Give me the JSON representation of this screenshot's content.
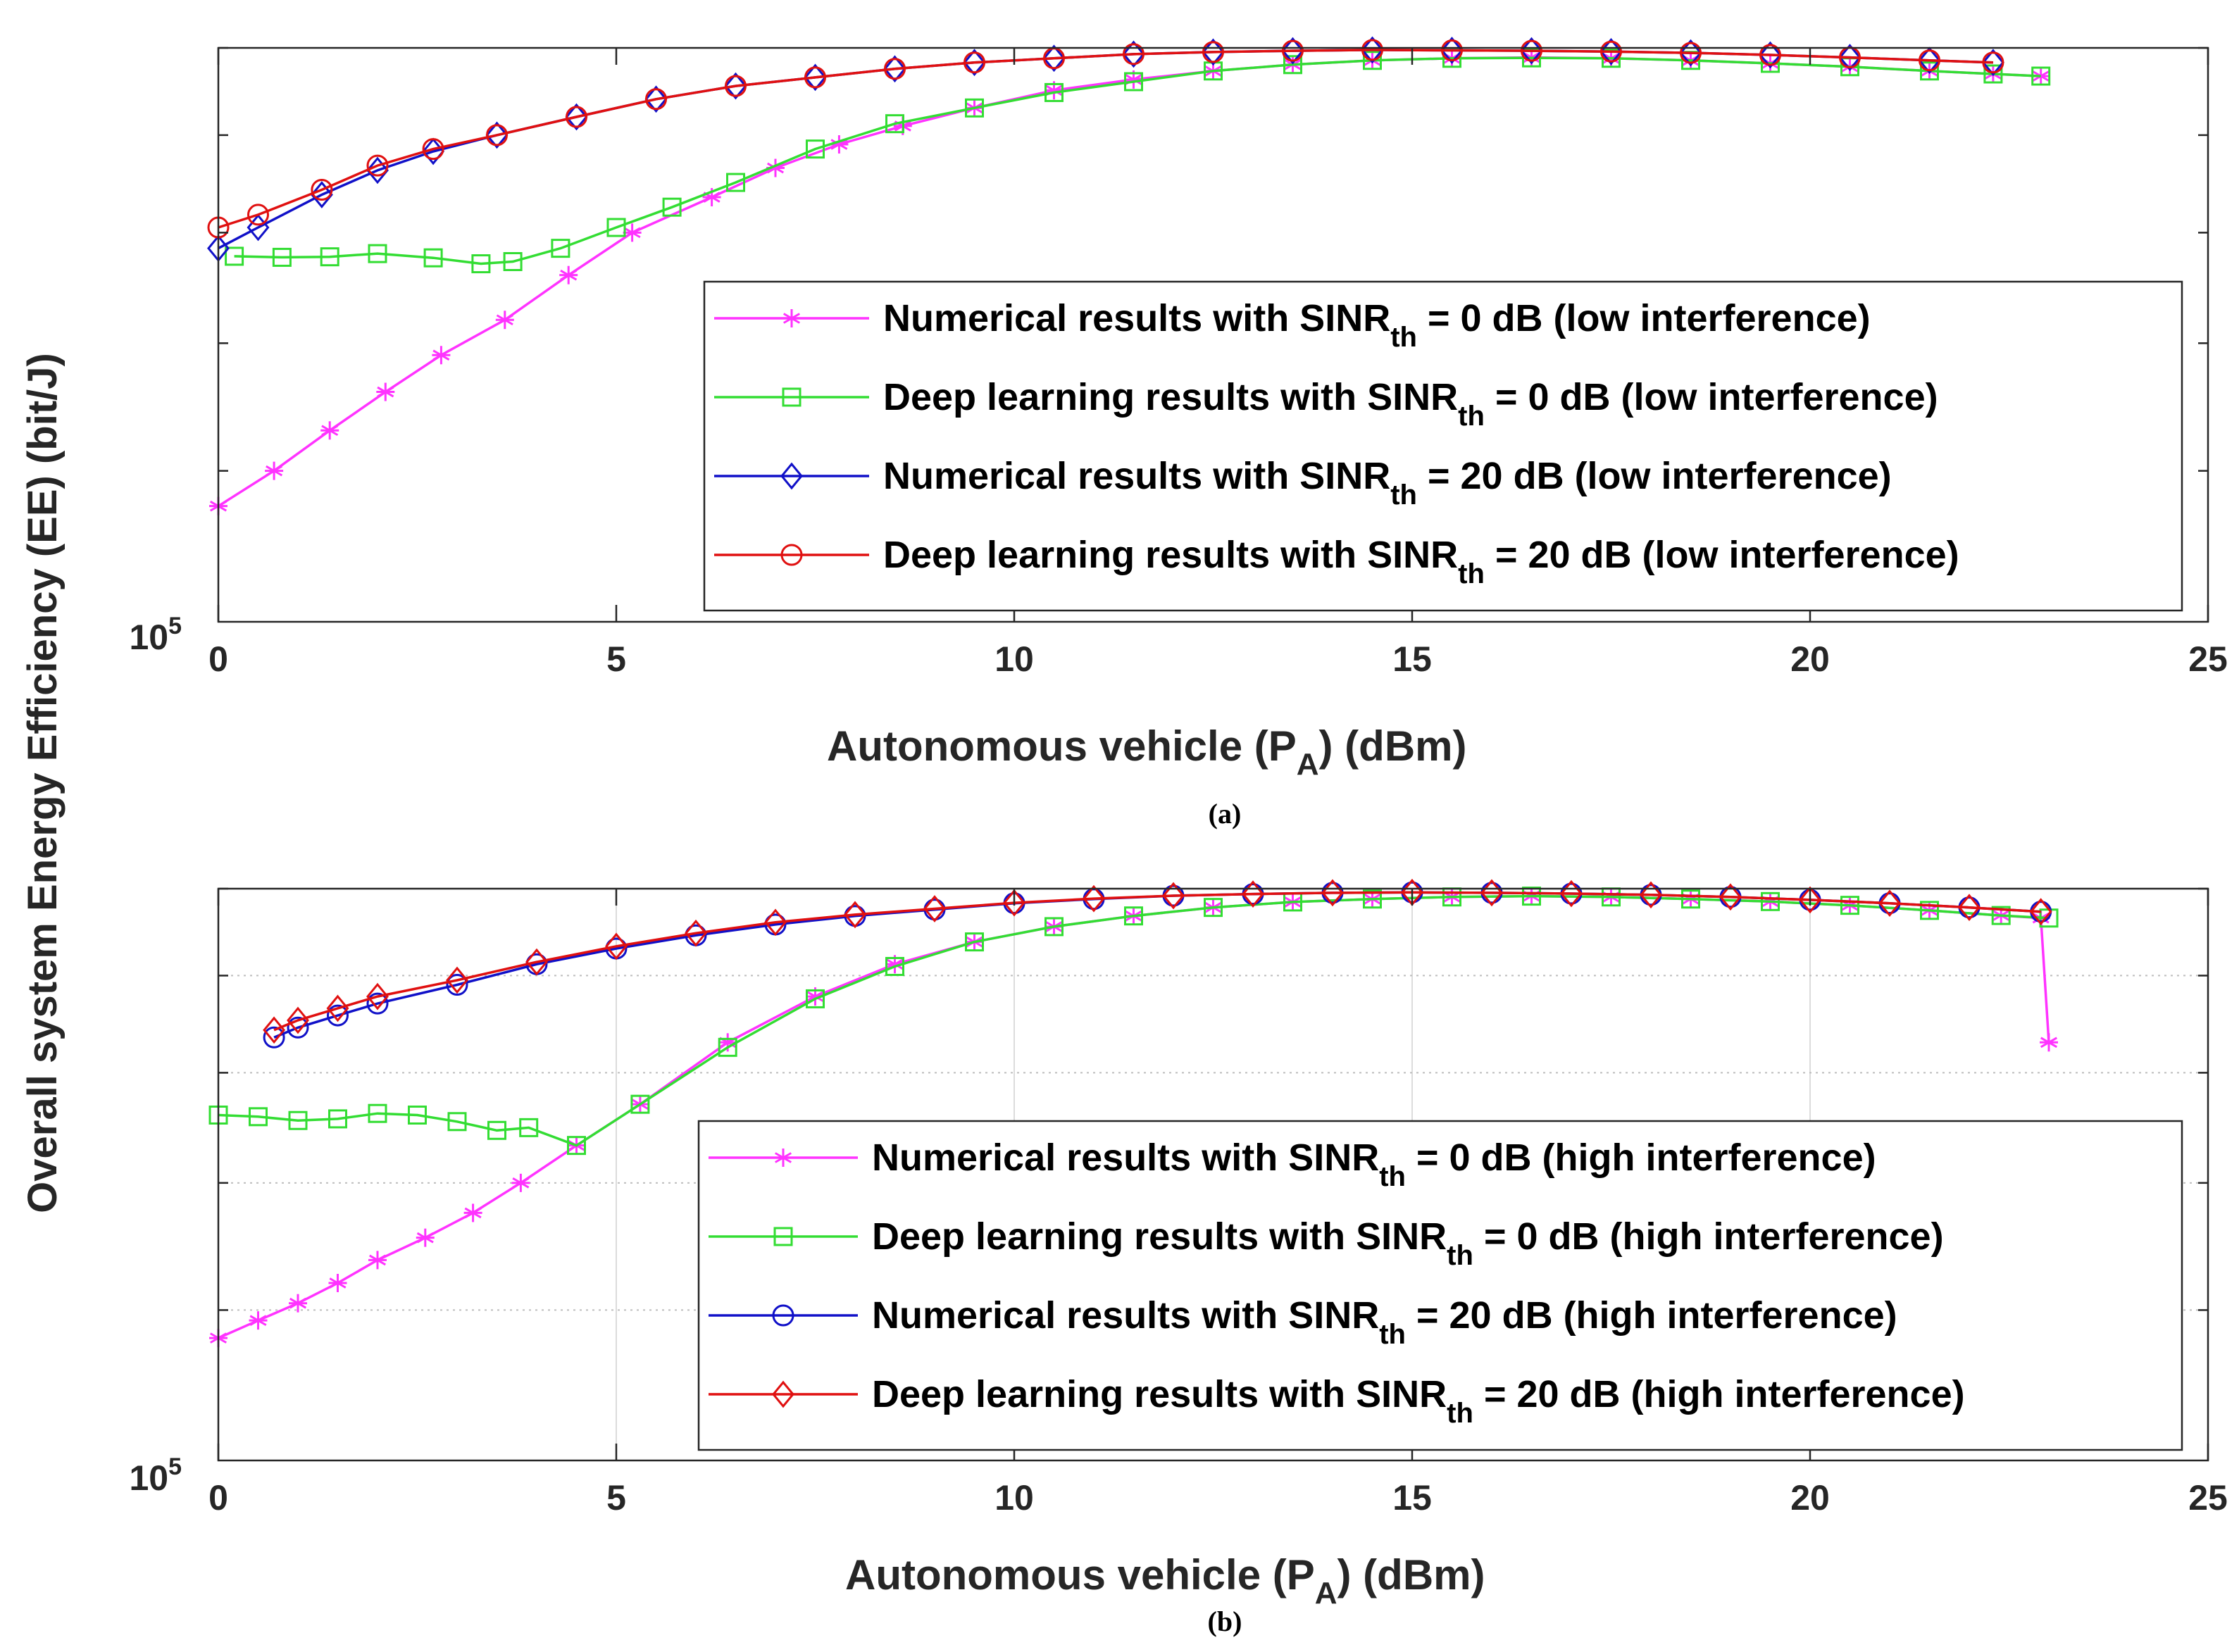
{
  "figure": {
    "ylabel": "Overall system Energy Efficiency (EE) (bit/J)"
  },
  "colors": {
    "magenta": "#ff33ff",
    "green": "#33dd33",
    "blue": "#1010c8",
    "red": "#e01010"
  },
  "chart_data": [
    {
      "type": "line",
      "caption": "(a)",
      "xlabel_pre": "Autonomous vehicle (P",
      "xlabel_sub": "A",
      "xlabel_post": ") (dBm)",
      "xlim": [
        0,
        25
      ],
      "xticks": [
        0,
        5,
        10,
        15,
        20,
        25
      ],
      "ylim": [
        100000,
        200000
      ],
      "yscale": "log",
      "ytick_base": "10",
      "ytick_exp": "5",
      "grid": false,
      "legend_position": "lower-right",
      "series": [
        {
          "legend_pre": "Numerical results with SINR",
          "legend_sub": "th",
          "legend_post": " = 0 dB (low interference)",
          "color": "#ff33ff",
          "marker": "asterisk",
          "x": [
            0,
            0.7,
            1.4,
            2.1,
            2.8,
            3.6,
            4.4,
            5.2,
            6.2,
            7.0,
            7.8,
            8.6,
            9.5,
            10.5,
            11.5,
            12.5,
            13.5,
            14.5,
            15.5,
            16.5,
            17.5,
            18.5,
            19.5,
            20.5,
            21.5,
            22.3,
            22.9
          ],
          "y": [
            115000,
            120000,
            126000,
            132000,
            138000,
            144000,
            152000,
            160000,
            167000,
            173000,
            178000,
            182000,
            186000,
            190000,
            192500,
            194500,
            196000,
            197000,
            197500,
            197700,
            197500,
            197000,
            196300,
            195500,
            194500,
            193800,
            193300
          ]
        },
        {
          "legend_pre": "Deep learning results with SINR",
          "legend_sub": "th",
          "legend_post": " = 0 dB (low interference)",
          "color": "#33dd33",
          "marker": "square",
          "x": [
            0.2,
            0.8,
            1.4,
            2.0,
            2.7,
            3.3,
            3.7,
            4.3,
            5.0,
            5.7,
            6.5,
            7.5,
            8.5,
            9.5,
            10.5,
            11.5,
            12.5,
            13.5,
            14.5,
            15.5,
            16.5,
            17.5,
            18.5,
            19.5,
            20.5,
            21.5,
            22.3,
            22.9
          ],
          "y": [
            155500,
            155300,
            155400,
            156000,
            155200,
            154100,
            154500,
            157000,
            161000,
            165000,
            170000,
            177000,
            182500,
            186000,
            189500,
            192000,
            194500,
            196000,
            197000,
            197500,
            197600,
            197500,
            197000,
            196300,
            195500,
            194500,
            193800,
            193300
          ]
        },
        {
          "legend_pre": "Numerical results with SINR",
          "legend_sub": "th",
          "legend_post": " = 20 dB (low interference)",
          "color": "#1010c8",
          "marker": "diamond",
          "x": [
            0,
            0.5,
            1.3,
            2.0,
            2.7,
            3.5,
            4.5,
            5.5,
            6.5,
            7.5,
            8.5,
            9.5,
            10.5,
            11.5,
            12.5,
            13.5,
            14.5,
            15.5,
            16.5,
            17.5,
            18.5,
            19.5,
            20.5,
            21.5,
            22.3
          ],
          "y": [
            157000,
            161000,
            167500,
            172500,
            176500,
            180000,
            184000,
            188000,
            191000,
            193000,
            195000,
            196500,
            197500,
            198500,
            199000,
            199300,
            199500,
            199400,
            199300,
            199100,
            198800,
            198300,
            197700,
            197000,
            196500
          ]
        },
        {
          "legend_pre": "Deep learning results with SINR",
          "legend_sub": "th",
          "legend_post": " = 20 dB (low interference)",
          "color": "#e01010",
          "marker": "circle",
          "x": [
            0,
            0.5,
            1.3,
            2.0,
            2.7,
            3.5,
            4.5,
            5.5,
            6.5,
            7.5,
            8.5,
            9.5,
            10.5,
            11.5,
            12.5,
            13.5,
            14.5,
            15.5,
            16.5,
            17.5,
            18.5,
            19.5,
            20.5,
            21.5,
            22.3
          ],
          "y": [
            161000,
            163500,
            168500,
            173500,
            177000,
            180000,
            184000,
            188000,
            191000,
            193000,
            195000,
            196500,
            197500,
            198500,
            199000,
            199300,
            199500,
            199400,
            199300,
            199100,
            198800,
            198300,
            197700,
            197000,
            196500
          ]
        }
      ]
    },
    {
      "type": "line",
      "caption": "(b)",
      "xlabel_pre": "Autonomous vehicle (P",
      "xlabel_sub": "A",
      "xlabel_post": ") (dBm)",
      "xlim": [
        0,
        25
      ],
      "xticks": [
        0,
        5,
        10,
        15,
        20,
        25
      ],
      "ylim": [
        100000,
        200000
      ],
      "yscale": "log",
      "ytick_base": "10",
      "ytick_exp": "5",
      "grid": true,
      "legend_position": "lower-right",
      "series": [
        {
          "legend_pre": "Numerical results with SINR",
          "legend_sub": "th",
          "legend_post": " = 0 dB (high interference)",
          "color": "#ff33ff",
          "marker": "asterisk",
          "x": [
            0,
            0.5,
            1.0,
            1.5,
            2.0,
            2.6,
            3.2,
            3.8,
            4.5,
            5.3,
            6.4,
            7.5,
            8.5,
            9.5,
            10.5,
            11.5,
            12.5,
            13.5,
            14.5,
            15.5,
            16.5,
            17.5,
            18.5,
            19.5,
            20.5,
            21.5,
            22.4,
            22.9,
            23.0
          ],
          "y": [
            116000,
            118500,
            121000,
            124000,
            127500,
            131000,
            135000,
            140000,
            146500,
            154000,
            166000,
            175500,
            182500,
            187500,
            191000,
            193500,
            195500,
            196800,
            197500,
            198000,
            198200,
            198000,
            197500,
            196900,
            196000,
            194800,
            193600,
            193000,
            166000
          ]
        },
        {
          "legend_pre": "Deep learning results with SINR",
          "legend_sub": "th",
          "legend_post": " = 0 dB (high interference)",
          "color": "#33dd33",
          "marker": "square",
          "x": [
            0,
            0.5,
            1.0,
            1.5,
            2.0,
            2.5,
            3.0,
            3.5,
            3.9,
            4.5,
            5.3,
            6.4,
            7.5,
            8.5,
            9.5,
            10.5,
            11.5,
            12.5,
            13.5,
            14.5,
            15.5,
            16.5,
            17.5,
            18.5,
            19.5,
            20.5,
            21.5,
            22.4,
            23.0
          ],
          "y": [
            152000,
            151700,
            151000,
            151300,
            152300,
            152000,
            150800,
            149200,
            149700,
            146500,
            154000,
            165000,
            175000,
            182000,
            187500,
            191000,
            193500,
            195500,
            196800,
            197500,
            198000,
            198200,
            198000,
            197500,
            196900,
            196000,
            194800,
            193600,
            193000
          ]
        },
        {
          "legend_pre": "Numerical results with SINR",
          "legend_sub": "th",
          "legend_post": " = 20 dB (high interference)",
          "color": "#1010c8",
          "marker": "circle",
          "x": [
            0.7,
            1.0,
            1.5,
            2.0,
            3.0,
            4.0,
            5.0,
            6.0,
            7.0,
            8.0,
            9.0,
            10.0,
            11.0,
            12.0,
            13.0,
            14.0,
            15.0,
            16.0,
            17.0,
            18.0,
            19.0,
            20.0,
            21.0,
            22.0,
            22.9
          ],
          "y": [
            167000,
            169000,
            171500,
            174000,
            178000,
            182500,
            186000,
            189000,
            191500,
            193500,
            195000,
            196500,
            197500,
            198300,
            198700,
            199000,
            199100,
            199000,
            198800,
            198500,
            198000,
            197300,
            196500,
            195500,
            194500
          ]
        },
        {
          "legend_pre": "Deep learning results with SINR",
          "legend_sub": "th",
          "legend_post": " = 20 dB (high interference)",
          "color": "#e01010",
          "marker": "diamond",
          "x": [
            0.7,
            1.0,
            1.5,
            2.0,
            3.0,
            4.0,
            5.0,
            6.0,
            7.0,
            8.0,
            9.0,
            10.0,
            11.0,
            12.0,
            13.0,
            14.0,
            15.0,
            16.0,
            17.0,
            18.0,
            19.0,
            20.0,
            21.0,
            22.0,
            22.9
          ],
          "y": [
            168500,
            170500,
            173000,
            175500,
            179000,
            183000,
            186500,
            189500,
            192000,
            193800,
            195200,
            196600,
            197600,
            198300,
            198700,
            199000,
            199100,
            199000,
            198800,
            198500,
            198000,
            197300,
            196500,
            195500,
            194500
          ]
        }
      ]
    }
  ]
}
